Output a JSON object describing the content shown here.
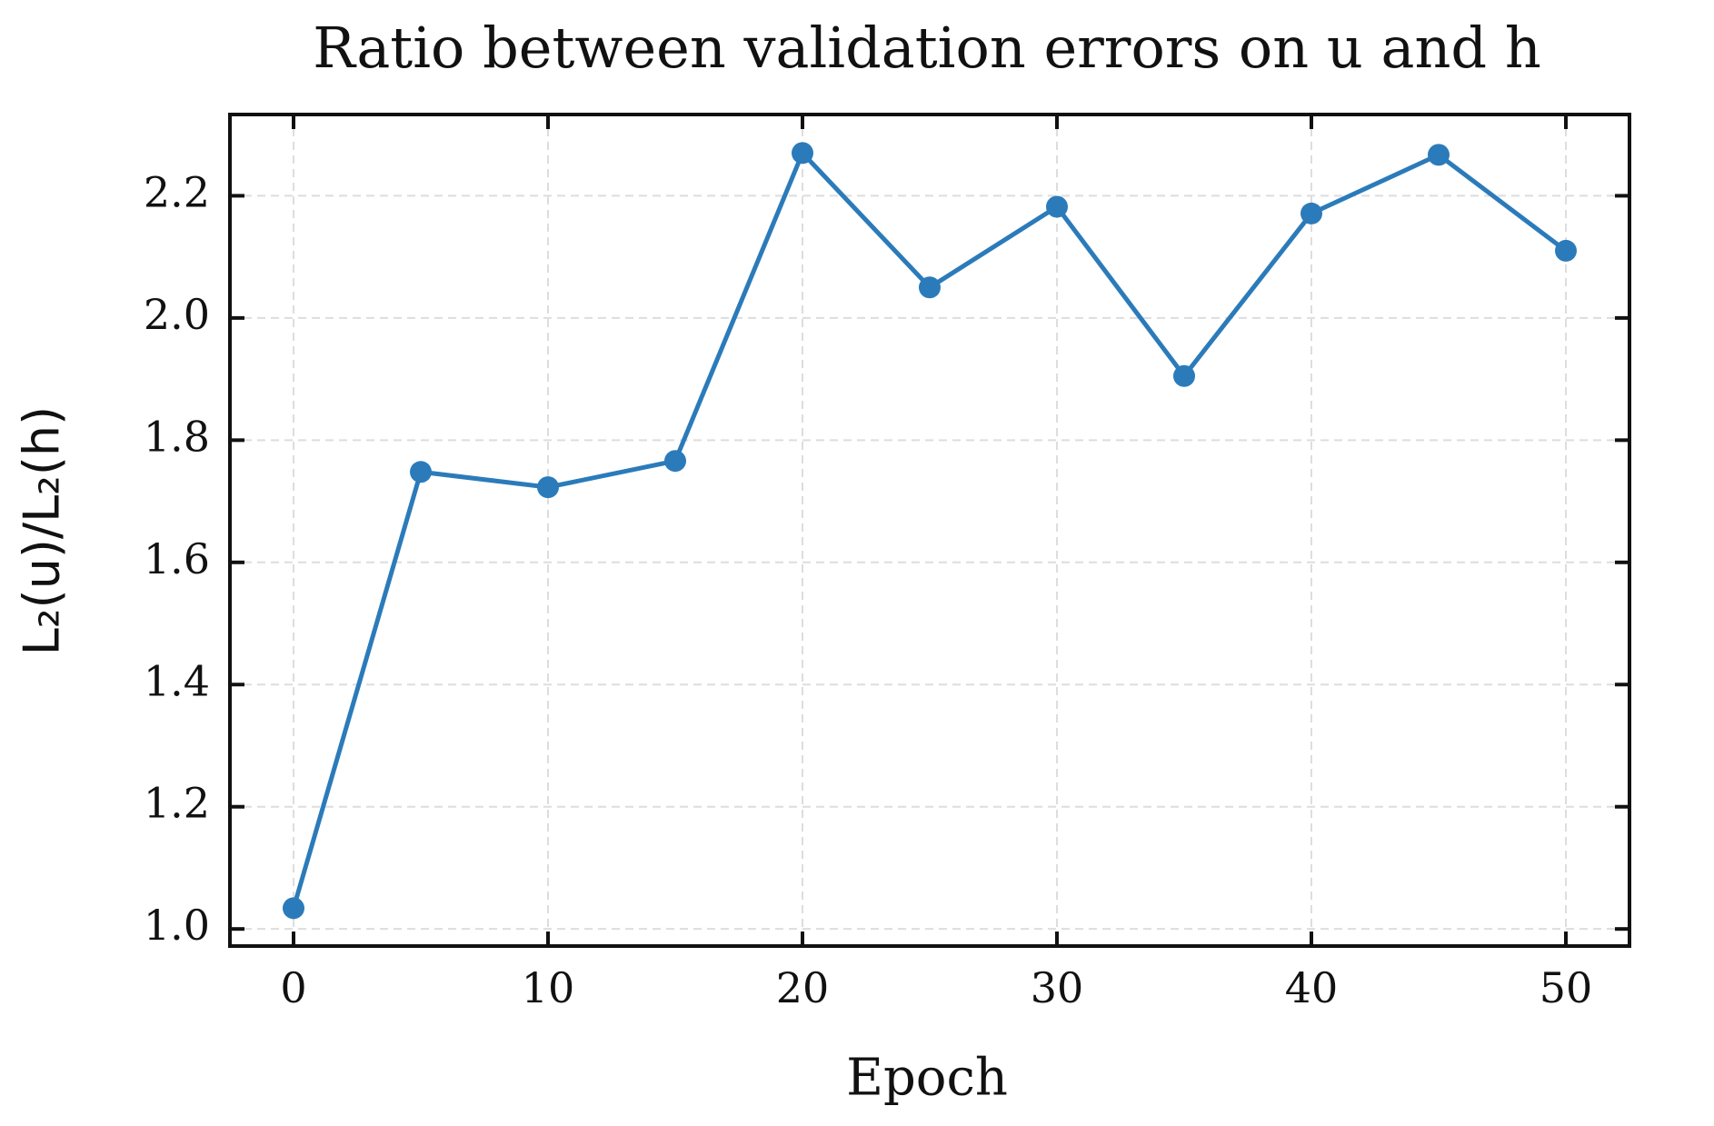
{
  "chart_data": {
    "type": "line",
    "title": "Ratio between validation errors on u and h",
    "xlabel": "Epoch",
    "ylabel": "L₂(u)/L₂(h)",
    "x": [
      0,
      5,
      10,
      15,
      20,
      25,
      30,
      35,
      40,
      45,
      50
    ],
    "series": [
      {
        "color": "#2b7bba",
        "values": [
          1.034,
          1.748,
          1.723,
          1.766,
          2.27,
          2.05,
          2.182,
          1.905,
          2.171,
          2.267,
          2.11
        ]
      }
    ],
    "xlim": [
      -2.5,
      52.5
    ],
    "ylim": [
      0.972,
      2.333
    ],
    "xticks": [
      0,
      10,
      20,
      30,
      40,
      50
    ],
    "yticks": [
      {
        "value": 1.0,
        "label": "1.0"
      },
      1.2,
      1.4,
      1.6,
      1.8,
      {
        "value": 2.0,
        "label": "2.0"
      },
      2.2
    ],
    "grid": true
  }
}
